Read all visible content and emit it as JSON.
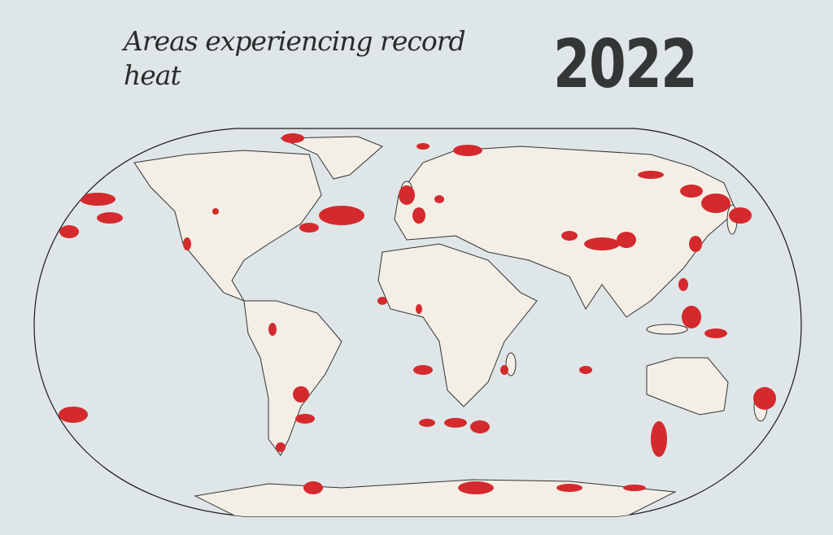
{
  "title": "Areas experiencing record heat",
  "year": "2022",
  "colors": {
    "background": "#dfe6e8",
    "land": "#f3efe6",
    "record_heat": "#d42a2e",
    "border": "#1a1a1a"
  }
}
